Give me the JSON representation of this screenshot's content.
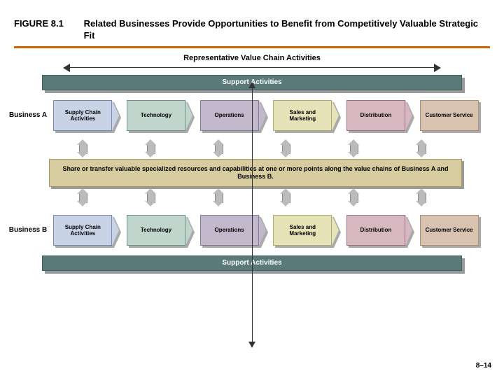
{
  "header": {
    "figure_number": "FIGURE 8.1",
    "title": "Related Businesses Provide Opportunities to Benefit from Competitively Valuable Strategic Fit",
    "rule_color": "#cc6600"
  },
  "rep_label": "Representative Value Chain Activities",
  "support_bar": {
    "label": "Support Activities",
    "bg": "#5a7a7a",
    "text_color": "#ffffff"
  },
  "chain_boxes": [
    {
      "label": "Supply Chain Activities",
      "bg": "#c9d3e6",
      "border": "#7a88b0"
    },
    {
      "label": "Technology",
      "bg": "#c0d6cd",
      "border": "#6f9488"
    },
    {
      "label": "Operations",
      "bg": "#c2b8cc",
      "border": "#8a7a9a"
    },
    {
      "label": "Sales and Marketing",
      "bg": "#e6e3b8",
      "border": "#b0aa70"
    },
    {
      "label": "Distribution",
      "bg": "#d8b8c0",
      "border": "#a07080"
    },
    {
      "label": "Customer Service",
      "bg": "#d8c2b0",
      "border": "#b09070"
    }
  ],
  "business_a_label": "Business A",
  "business_b_label": "Business B",
  "share_text": "Share or transfer valuable specialized resources and capabilities at one or more points along the value chains of Business A and Business B.",
  "share_bg": "#d6cc9f",
  "share_border": "#aa9960",
  "arrow_gray": "#bbbbbb",
  "page_number": "8–14"
}
